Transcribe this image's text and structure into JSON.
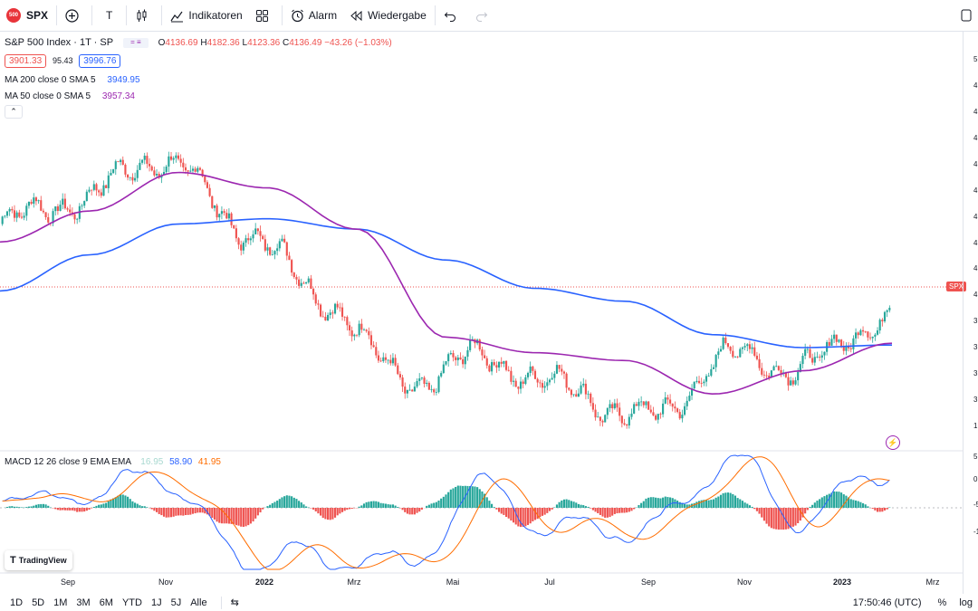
{
  "toolbar": {
    "symbol_badge": "500",
    "symbol": "SPX",
    "add_icon": "plus-circle-icon",
    "interval": "T",
    "chart_type_icon": "candles-icon",
    "indicators_label": "Indikatoren",
    "templates_icon": "grid-icon",
    "alarm_label": "Alarm",
    "replay_label": "Wiedergabe",
    "undo_icon": "undo-icon",
    "redo_icon": "redo-icon"
  },
  "legend": {
    "title": "S&P 500 Index · 1T · SP",
    "ohlc": {
      "o_label": "O",
      "o": "4136.69",
      "h_label": "H",
      "h": "4182.36",
      "l_label": "L",
      "l": "4123.36",
      "c_label": "C",
      "c": "4136.49",
      "change": "−43.26 (−1.03%)"
    },
    "bid": "3901.33",
    "spread": "95.43",
    "ask": "3996.76",
    "ma200": {
      "label": "MA 200 close 0 SMA 5",
      "value": "3949.95",
      "color": "#2962ff"
    },
    "ma50": {
      "label": "MA 50 close 0 SMA 5",
      "value": "3957.34",
      "color": "#9c27b0"
    },
    "macd": {
      "label": "MACD 12 26 close 9 EMA EMA",
      "hist": "16.95",
      "macd": "58.90",
      "signal": "41.95"
    }
  },
  "price_tag": "SPX",
  "x_axis": [
    "Sep",
    "Nov",
    "2022",
    "Mrz",
    "Mai",
    "Jul",
    "Sep",
    "Nov",
    "2023",
    "Mrz"
  ],
  "y_axis_right": [
    "5",
    "4",
    "4",
    "4",
    "4",
    "4",
    "4",
    "4",
    "4",
    "4",
    "3",
    "3",
    "3",
    "3",
    "1",
    "5",
    "0",
    "-5",
    "-1"
  ],
  "bottom": {
    "ranges": [
      "1D",
      "5D",
      "1M",
      "3M",
      "6M",
      "YTD",
      "1J",
      "5J",
      "Alle"
    ],
    "time": "17:50:46 (UTC)",
    "percent": "%",
    "log": "log"
  },
  "tradingview_logo": "TradingView",
  "colors": {
    "up": "#26a69a",
    "down": "#ef5350",
    "ma200": "#2962ff",
    "ma50": "#9c27b0",
    "macd": "#2962ff",
    "signal": "#ff6d00"
  },
  "chart_data": {
    "type": "line",
    "title": "S&P 500 Index · 1T · SP",
    "x_labels": [
      "Sep",
      "Nov",
      "2022",
      "Mrz",
      "Mai",
      "Jul",
      "Sep",
      "Nov",
      "2023",
      "Mrz"
    ],
    "series": [
      {
        "name": "SPX",
        "values": [
          4420,
          4520,
          4680,
          4410,
          4130,
          3810,
          3900,
          3780,
          3660,
          3900,
          3870,
          4080
        ]
      },
      {
        "name": "MA 200 close 0 SMA 5",
        "values": [
          4160,
          4300,
          4420,
          4440,
          4400,
          4280,
          4170,
          4120,
          3990,
          3940,
          3950
        ]
      },
      {
        "name": "MA 50 close 0 SMA 5",
        "values": [
          4350,
          4470,
          4620,
          4560,
          4400,
          3980,
          3920,
          3890,
          3760,
          3850,
          3957
        ]
      }
    ]
  }
}
